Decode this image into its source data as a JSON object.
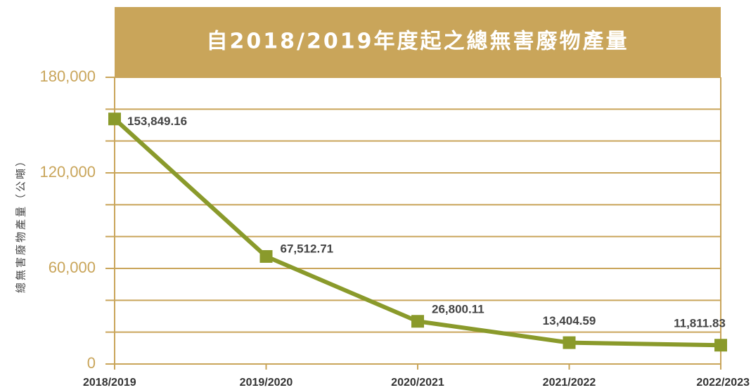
{
  "chart_data": {
    "type": "line",
    "title": "自2018/2019年度起之總無害廢物產量",
    "y_label": "總無害廢物產量（公噸）",
    "categories": [
      "2018/2019",
      "2019/2020",
      "2020/2021",
      "2021/2022",
      "2022/2023"
    ],
    "series": [
      {
        "color": "#8a9a2b",
        "values": [
          153849.16,
          67512.71,
          26800.11,
          13404.59,
          11811.83
        ],
        "value_labels": [
          "153,849.16",
          "67,512.71",
          "26,800.11",
          "13,404.59",
          "11,811.83"
        ]
      }
    ],
    "ylim": [
      0,
      180000
    ],
    "yticks": [
      0,
      {
        "value": 60000,
        "label": "60,000"
      },
      {
        "value": 120000,
        "label": "120,000"
      },
      {
        "value": 180000,
        "label": "180,000"
      }
    ],
    "grid": true,
    "grid_minor_divisions": 3,
    "grid_color": "#c9a55a",
    "title_color": "#c9a55a"
  }
}
